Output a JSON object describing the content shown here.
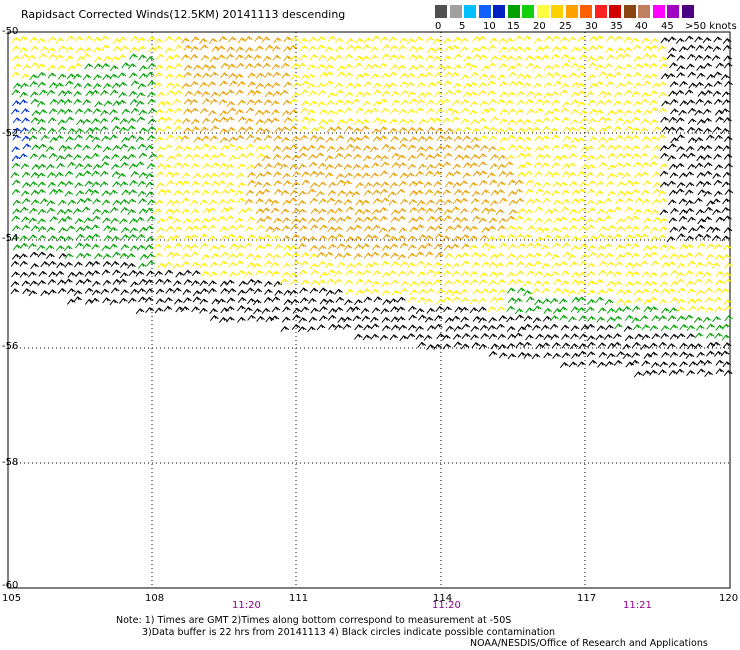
{
  "title": "Rapidsact Corrected Winds(12.5KM) 20141113 descending",
  "legend": {
    "labels": [
      "0",
      "5",
      "10",
      "15",
      "20",
      "25",
      "30",
      "35",
      "40",
      "45",
      ">50 knots"
    ],
    "colors": [
      "#505050",
      "#a0a0a0",
      "#00bfff",
      "#1060ff",
      "#0020c0",
      "#00a000",
      "#10d010",
      "#ffff40",
      "#ffd000",
      "#ffa000",
      "#ff6000",
      "#ff2020",
      "#d00000",
      "#8b4513",
      "#c08060",
      "#ff00ff",
      "#a000c0",
      "#4b0082"
    ]
  },
  "axes": {
    "lon_labels": [
      "105",
      "108",
      "111",
      "114",
      "117",
      "120"
    ],
    "lat_labels": [
      "-50",
      "-52",
      "-54",
      "-56",
      "-58",
      "-60"
    ]
  },
  "times": [
    "11:20",
    "11:20",
    "11:21"
  ],
  "notes": [
    "Note: 1) Times are GMT 2)Times along bottom correspond to measurement at -50S",
    "3)Data buffer is 22 hrs from 20141113 4) Black circles indicate possible contamination",
    "NOAA/NESDIS/Office of Research and Applications"
  ],
  "colors": {
    "orange": "#e8a000",
    "yellow": "#ffee00",
    "green": "#00a000",
    "blue": "#0030d0",
    "black": "#000000"
  }
}
